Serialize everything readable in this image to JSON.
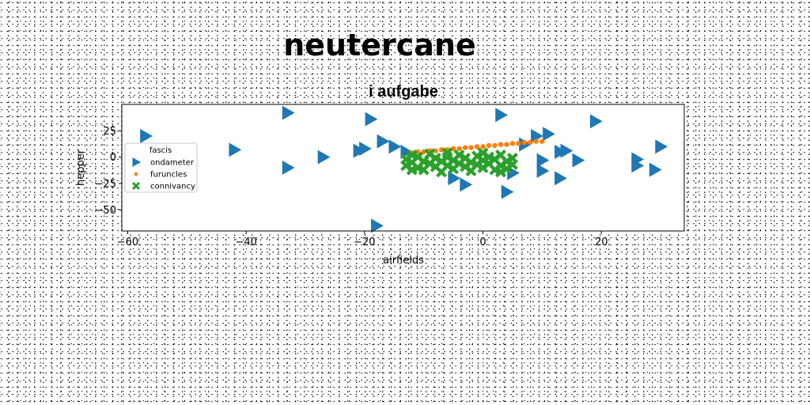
{
  "chart_data": {
    "type": "scatter",
    "suptitle": "neutercane",
    "title": "i aufgabe",
    "xlabel": "airfields",
    "ylabel": "hepper",
    "xlim": [
      -61,
      34
    ],
    "ylim": [
      -70,
      50
    ],
    "xticks": [
      -60,
      -40,
      -20,
      0,
      20
    ],
    "yticks": [
      -50,
      -25,
      0,
      25
    ],
    "grid": false,
    "legend": {
      "title": "fascis",
      "placement": "center-left"
    },
    "series": [
      {
        "name": "ondameter",
        "marker": "triangle-right",
        "color": "#1f77b4",
        "points": [
          [
            -57,
            20
          ],
          [
            -42,
            7
          ],
          [
            -33,
            42
          ],
          [
            -33,
            -10
          ],
          [
            -27,
            0
          ],
          [
            -21,
            6
          ],
          [
            -20,
            8
          ],
          [
            -19,
            36
          ],
          [
            -18,
            -65
          ],
          [
            -17,
            15
          ],
          [
            -15,
            10
          ],
          [
            -13,
            5
          ],
          [
            -5,
            -20
          ],
          [
            -3,
            -26
          ],
          [
            3,
            40
          ],
          [
            4,
            -33
          ],
          [
            5,
            -15
          ],
          [
            7,
            12
          ],
          [
            9,
            20
          ],
          [
            10,
            -13
          ],
          [
            10,
            -3
          ],
          [
            11,
            22
          ],
          [
            13,
            5
          ],
          [
            13,
            -20
          ],
          [
            14,
            6
          ],
          [
            16,
            -3
          ],
          [
            19,
            34
          ],
          [
            26,
            -2
          ],
          [
            26,
            -8
          ],
          [
            29,
            -12
          ],
          [
            30,
            10
          ]
        ]
      },
      {
        "name": "furuncles",
        "marker": "circle",
        "color": "#ff7f0e",
        "points": [
          [
            -12,
            4
          ],
          [
            -11,
            5
          ],
          [
            -10,
            5
          ],
          [
            -9,
            6
          ],
          [
            -8,
            6
          ],
          [
            -7,
            7
          ],
          [
            -6,
            7
          ],
          [
            -5,
            8
          ],
          [
            -4,
            8
          ],
          [
            -3,
            9
          ],
          [
            -2,
            9
          ],
          [
            -1,
            10
          ],
          [
            0,
            10
          ],
          [
            1,
            11
          ],
          [
            2,
            11
          ],
          [
            3,
            12
          ],
          [
            4,
            12
          ],
          [
            5,
            13
          ],
          [
            6,
            13
          ],
          [
            7,
            14
          ],
          [
            8,
            14
          ],
          [
            9,
            15
          ],
          [
            10,
            15
          ]
        ]
      },
      {
        "name": "connivancy",
        "marker": "x-filled",
        "color": "#2ca02c",
        "points": [
          [
            -13,
            -2
          ],
          [
            -13,
            -8
          ],
          [
            -12,
            2
          ],
          [
            -12,
            -5
          ],
          [
            -11,
            -10
          ],
          [
            -11,
            0
          ],
          [
            -10,
            -4
          ],
          [
            -10,
            -12
          ],
          [
            -9,
            -6
          ],
          [
            -9,
            3
          ],
          [
            -8,
            -1
          ],
          [
            -8,
            -9
          ],
          [
            -7,
            -14
          ],
          [
            -7,
            -4
          ],
          [
            -6,
            0
          ],
          [
            -6,
            -8
          ],
          [
            -5,
            -11
          ],
          [
            -5,
            -3
          ],
          [
            -4,
            2
          ],
          [
            -4,
            -6
          ],
          [
            -3,
            -9
          ],
          [
            -3,
            -1
          ],
          [
            -2,
            -5
          ],
          [
            -2,
            -13
          ],
          [
            -1,
            1
          ],
          [
            -1,
            -7
          ],
          [
            0,
            -3
          ],
          [
            0,
            -10
          ],
          [
            1,
            0
          ],
          [
            1,
            -6
          ],
          [
            2,
            -12
          ],
          [
            2,
            -2
          ],
          [
            3,
            -8
          ],
          [
            3,
            2
          ],
          [
            4,
            -4
          ],
          [
            4,
            -11
          ],
          [
            5,
            -1
          ],
          [
            5,
            -7
          ],
          [
            -12,
            -12
          ],
          [
            -6,
            4
          ],
          [
            0,
            4
          ],
          [
            3,
            -14
          ]
        ]
      }
    ]
  }
}
